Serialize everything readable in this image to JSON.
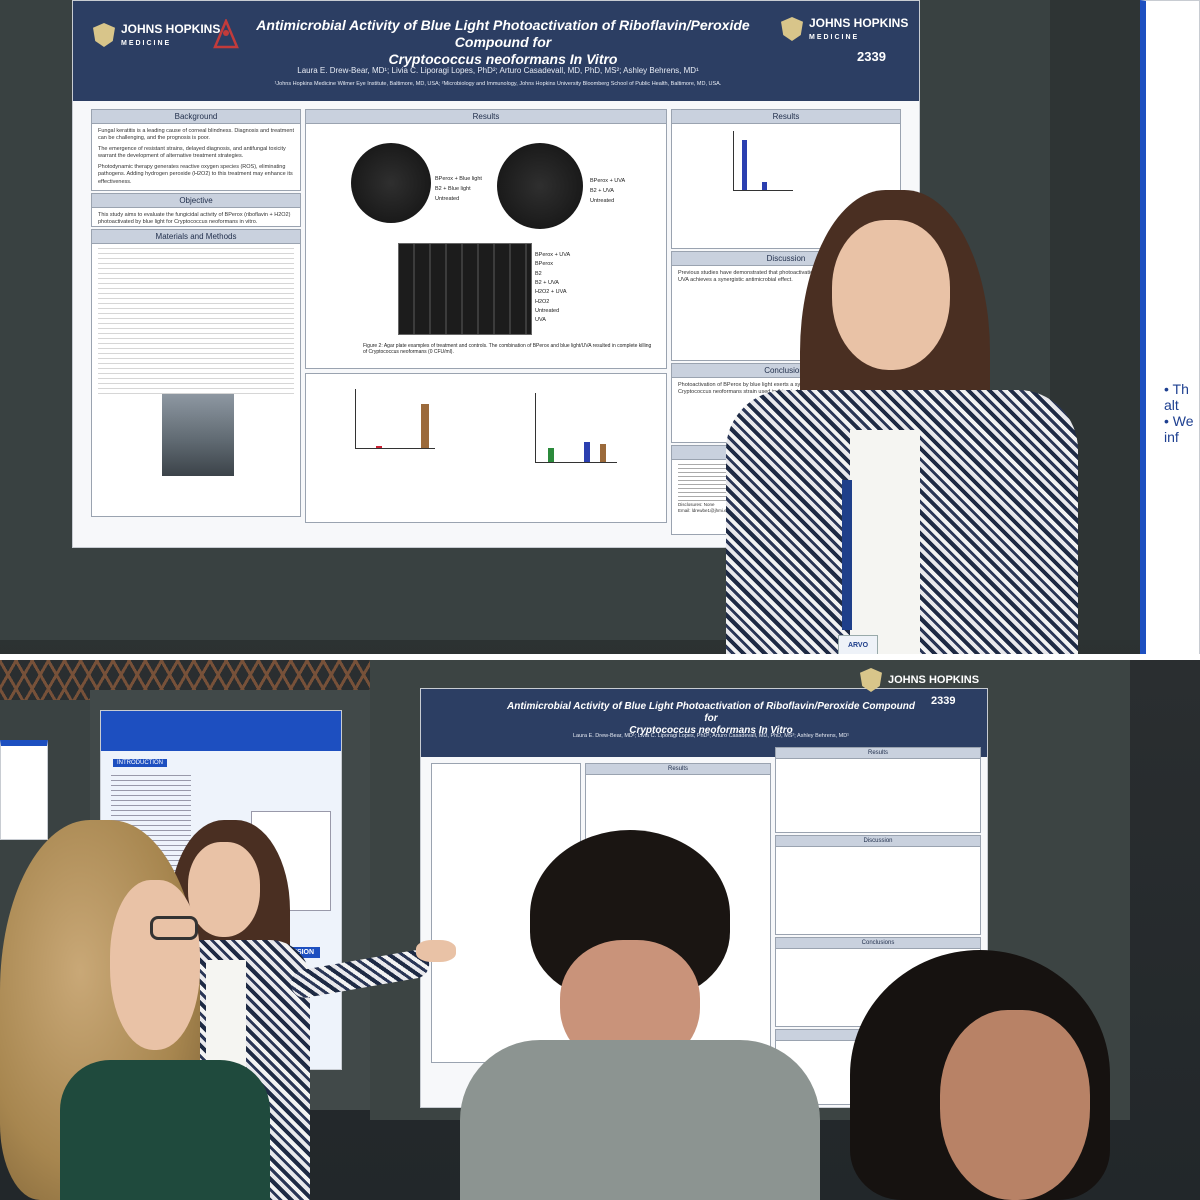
{
  "poster": {
    "title_line1": "Antimicrobial Activity of Blue Light Photoactivation of Riboflavin/Peroxide Compound for",
    "title_line2": "Cryptococcus neoformans In Vitro",
    "number": "2339",
    "logo_text_1": "JOHNS HOPKINS",
    "logo_text_2": "MEDICINE",
    "authors": "Laura E. Drew-Bear, MD¹; Livia C. Liporagi Lopes, PhD²; Arturo Casadevall, MD, PhD, MS²; Ashley Behrens, MD¹",
    "affiliations": "¹Johns Hopkins Medicine Wilmer Eye Institute, Baltimore, MD, USA; ²Microbiology and Immunology, Johns Hopkins University Bloomberg School of Public Health, Baltimore, MD, USA.",
    "sections": {
      "background": "Background",
      "objective": "Objective",
      "materials": "Materials and Methods",
      "results": "Results",
      "discussion": "Discussion",
      "conclusions": "Conclusions",
      "references": "References"
    },
    "background_text": [
      "Fungal keratitis is a leading cause of corneal blindness. Diagnosis and treatment can be challenging, and the prognosis is poor.",
      "The emergence of resistant strains, delayed diagnosis, and antifungal toxicity warrant the development of alternative treatment strategies.",
      "Photodynamic therapy generates reactive oxygen species (ROS), eliminating pathogens. Adding hydrogen peroxide (H2O2) to this treatment may enhance its effectiveness."
    ],
    "objective_text": "This study aims to evaluate the fungicidal activity of BPerox (riboflavin + H2O2) photoactivated by blue light for Cryptococcus neoformans in vitro.",
    "plate_labels_left": [
      "BPerox + Blue light",
      "B2 + Blue light",
      "Untreated"
    ],
    "plate_labels_right": [
      "BPerox + UVA",
      "B2 + UVA",
      "Untreated"
    ],
    "grid_labels": [
      "BPerox + UVA",
      "BPerox",
      "B2",
      "B2 + UVA",
      "H2O2 + UVA",
      "H2O2",
      "Untreated",
      "UVA"
    ],
    "figure2_caption": "Figure 2: Agar plate examples of treatment and controls. The combination of BPerox and blue light/UVA resulted in complete killing of Cryptococcus neoformans (0 CFU/ml).",
    "discussion_text": "Previous studies have demonstrated that photoactivation of riboflavin by blue light and UVA achieves a synergistic antimicrobial effect.",
    "conclusions_text": "Photoactivation of BPerox by blue light exerts a synergistic fungicidal activity on the Cryptococcus neoformans strain used in this study.",
    "disclosures": "Disclosures: None",
    "email": "Email: ldrewbe1@jhmi.edu"
  },
  "badge": {
    "text": "ARVO"
  },
  "neighbor_poster": {
    "conclusion_label": "CONCLUSION",
    "intro_label": "INTRODUCTION"
  },
  "colors": {
    "poster_header": "#2c3e63",
    "section_header": "#c9d1de",
    "bar_blue": "#2b3fb0",
    "neighbor_blue": "#1d4fc0"
  }
}
